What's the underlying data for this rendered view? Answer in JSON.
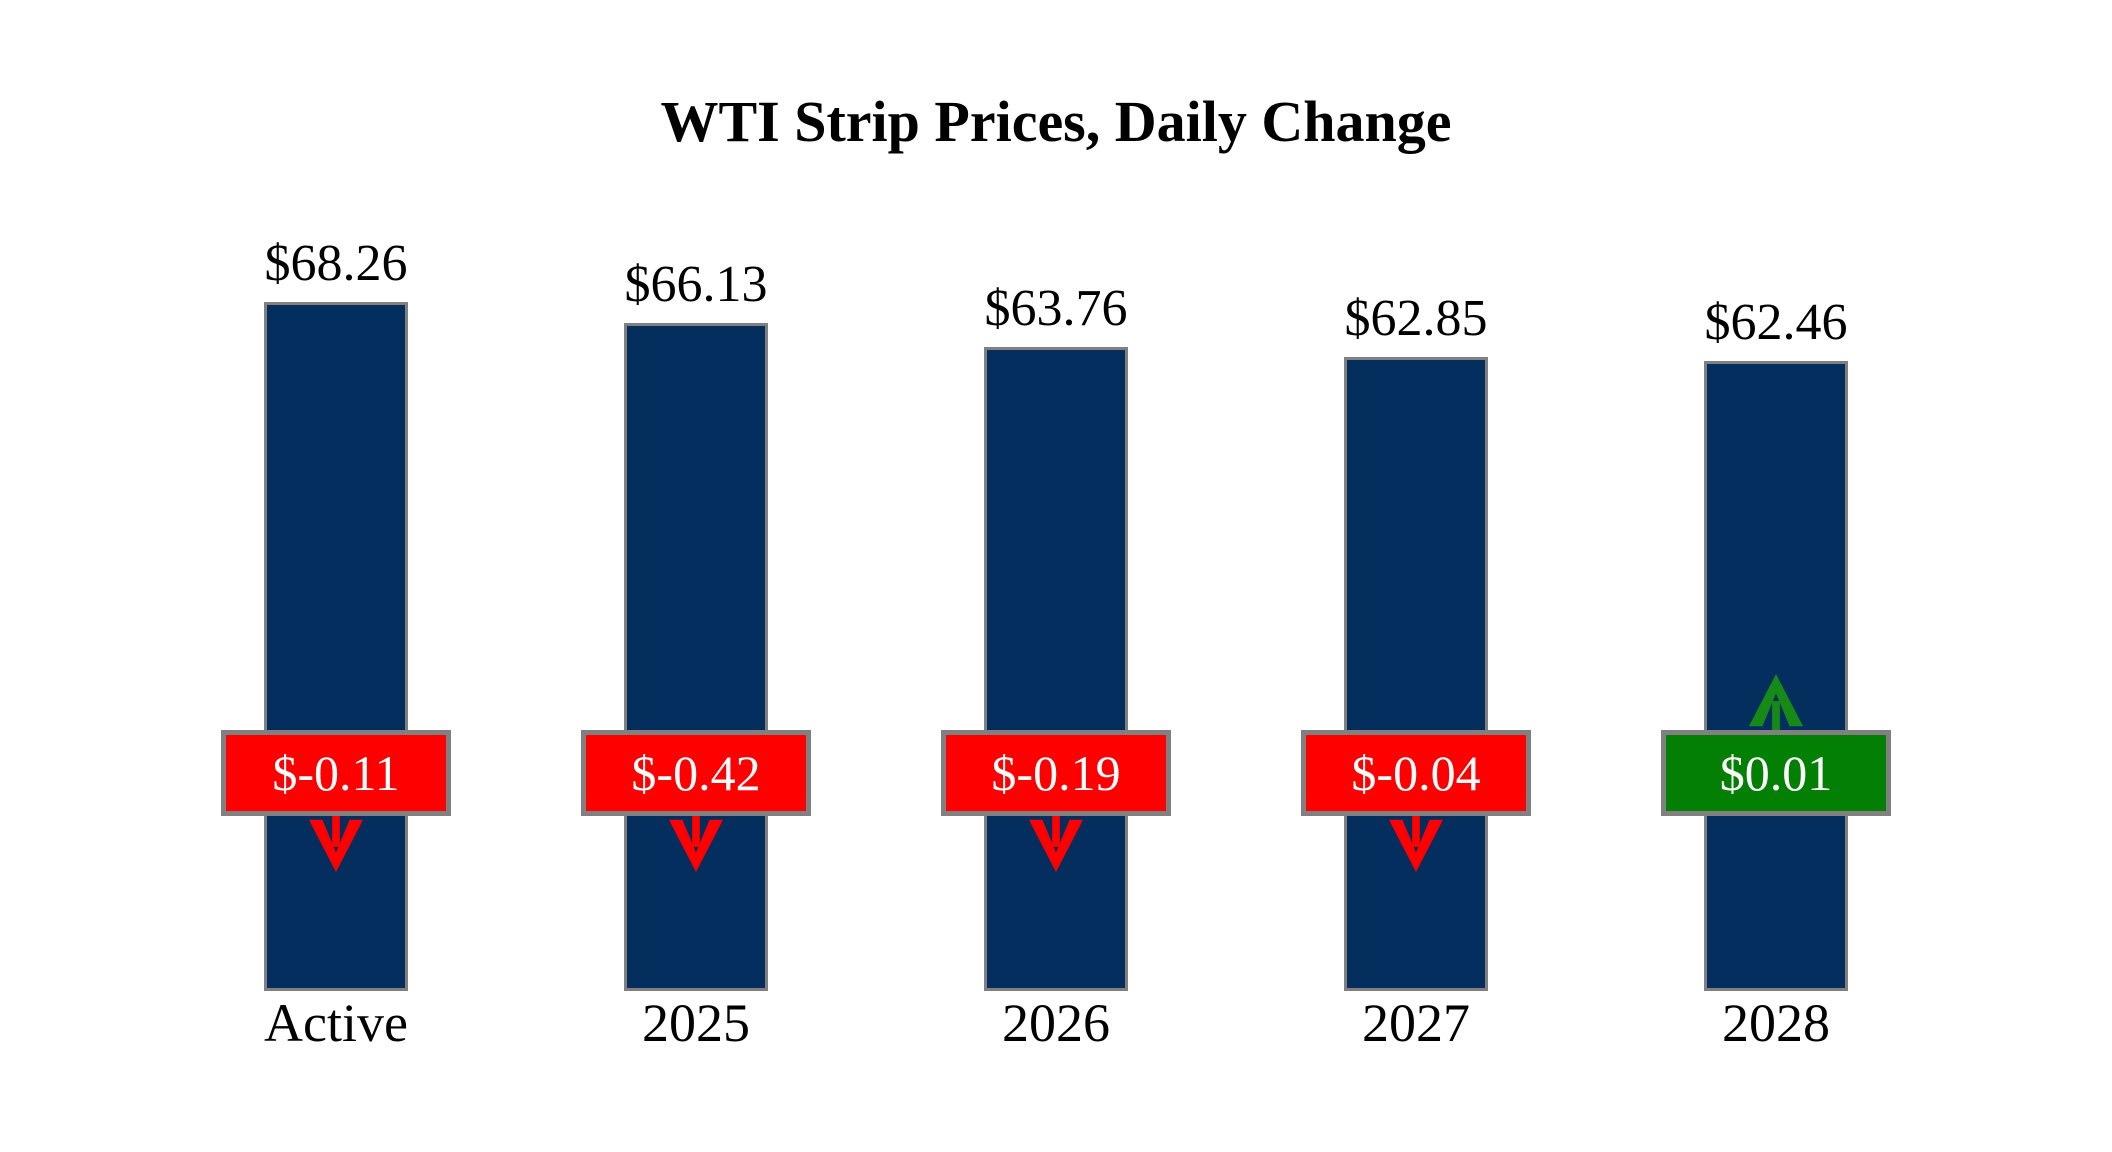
{
  "title": "WTI Strip Prices, Daily Change",
  "chart_data": {
    "type": "bar",
    "title": "WTI Strip Prices, Daily Change",
    "categories": [
      "Active",
      "2025",
      "2026",
      "2027",
      "2028"
    ],
    "values": [
      68.26,
      66.13,
      63.76,
      62.85,
      62.46
    ],
    "value_labels": [
      "$68.26",
      "$66.13",
      "$63.76",
      "$62.85",
      "$62.46"
    ],
    "daily_changes": [
      -0.11,
      -0.42,
      -0.19,
      -0.04,
      0.01
    ],
    "change_labels": [
      "$-0.11",
      "$-0.42",
      "$-0.19",
      "$-0.04",
      "$0.01"
    ],
    "change_directions": [
      "down",
      "down",
      "down",
      "down",
      "up"
    ],
    "ylim": [
      0,
      68.26
    ],
    "grid": false,
    "legend": false,
    "axes_hidden": true,
    "colors": {
      "background": "#ffffff",
      "bar_fill": "#032e5e",
      "bar_border": "#808080",
      "box_border": "#808080",
      "negative_box": "#fe0000",
      "positive_box": "#038003",
      "negative_arrow": "#fe0000",
      "positive_arrow": "#168a16",
      "box_text": "#ffffff",
      "label_text": "#000000"
    }
  }
}
